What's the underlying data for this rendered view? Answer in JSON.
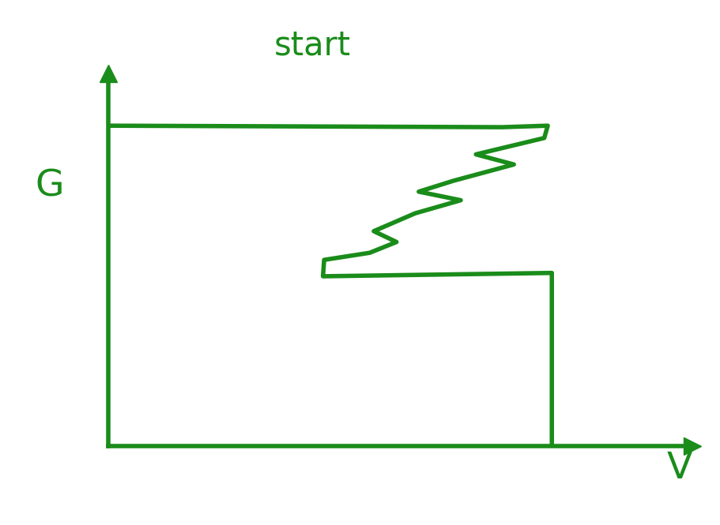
{
  "chart_data": {
    "type": "line",
    "title": "start",
    "x_label": "V",
    "y_label": "G",
    "x": [
      0,
      6.75,
      7.53,
      7.47,
      6.3,
      6.95,
      5.91,
      5.32,
      6.04,
      5.26,
      4.55,
      4.94,
      4.48,
      3.7,
      3.68,
      7.6,
      7.6
    ],
    "values": [
      8.6,
      8.56,
      8.6,
      8.27,
      7.83,
      7.56,
      7.12,
      6.83,
      6.6,
      6.25,
      5.77,
      5.48,
      5.19,
      5.0,
      4.56,
      4.65,
      0
    ],
    "xlim": [
      0,
      10
    ],
    "ylim": [
      0,
      10
    ],
    "tick_labels": false,
    "color": "#1a8c1a"
  }
}
